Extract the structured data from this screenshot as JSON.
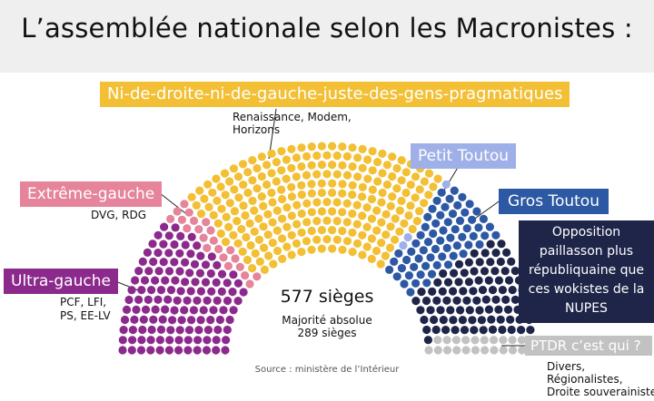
{
  "title": "L’assemblée nationale selon les Macronistes :",
  "center": {
    "seats": "577 sièges",
    "majority_line1": "Majorité absolue",
    "majority_line2": "289 sièges"
  },
  "source": "Source : ministère de l’Intérieur",
  "labels": {
    "center_group": "Ni-de-droite-ni-de-gauche-juste-des-gens-pragmatiques",
    "center_group_sub": [
      "Renaissance, Modem,",
      "Horizons"
    ],
    "petit_toutou": "Petit Toutou",
    "gros_toutou": "Gros Toutou",
    "opposition": [
      "Opposition",
      "paillasson plus",
      "républiquaine que",
      "ces wokistes de la",
      "NUPES"
    ],
    "ptdr": "PTDR c’est qui ?",
    "ptdr_sub": [
      "Divers,",
      "Régionalistes,",
      "Droite souverainiste"
    ],
    "extreme_gauche": "Extrême-gauche",
    "extreme_gauche_sub": "DVG, RDG",
    "ultra_gauche": "Ultra-gauche",
    "ultra_gauche_sub": [
      "PCF,  LFI,",
      "PS, EE-LV"
    ]
  },
  "colors": {
    "ultra_gauche": "#8b2a8c",
    "extreme_gauche": "#e5849a",
    "center_group": "#f2bf35",
    "petit_toutou": "#9fb0e8",
    "gros_toutou": "#2d58a3",
    "opposition": "#1e2548",
    "ptdr": "#c2c2c2",
    "header_bg": "#efefef"
  },
  "chart_data": {
    "type": "parliament",
    "total_seats": 577,
    "majority": 289,
    "series": [
      {
        "name": "Ultra-gauche",
        "seats": 131
      },
      {
        "name": "Extrême-gauche",
        "seats": 22
      },
      {
        "name": "Ni-de-droite-ni-de-gauche-juste-des-gens-pragmatiques",
        "seats": 245
      },
      {
        "name": "Petit Toutou",
        "seats": 3
      },
      {
        "name": "Gros Toutou",
        "seats": 64
      },
      {
        "name": "Opposition paillasson plus républiquaine que ces wokistes de la NUPES",
        "seats": 89
      },
      {
        "name": "PTDR c’est qui ?",
        "seats": 23
      }
    ]
  }
}
